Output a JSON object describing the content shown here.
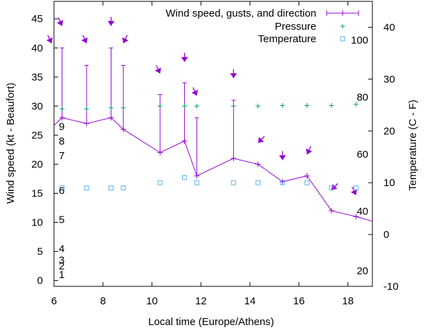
{
  "chart_data": {
    "type": "line",
    "title": "",
    "xlabel": "Local time (Europe/Athens)",
    "ylabel": "Wind speed (kt - Beaufort)",
    "y2label": "Temperature (C - F)",
    "xlim": [
      6,
      19
    ],
    "ylim": [
      -1,
      48
    ],
    "y2lim": [
      -10,
      45
    ],
    "x_ticks": [
      6,
      8,
      10,
      12,
      14,
      16,
      18
    ],
    "y_ticks": [
      0,
      5,
      10,
      15,
      20,
      25,
      30,
      35,
      40,
      45
    ],
    "y2_ticks": [
      -10,
      0,
      10,
      20,
      30,
      40
    ],
    "beaufort_labels": [
      {
        "y": 1,
        "text": "1"
      },
      {
        "y": 2.5,
        "text": "2"
      },
      {
        "y": 3.5,
        "text": "3"
      },
      {
        "y": 5.5,
        "text": "4"
      },
      {
        "y": 10.5,
        "text": "5"
      },
      {
        "y": 15.5,
        "text": "6"
      },
      {
        "y": 21.5,
        "text": "7"
      },
      {
        "y": 24,
        "text": "8"
      },
      {
        "y": 26.5,
        "text": "9"
      }
    ],
    "fahrenheit_labels": [
      {
        "y2": -7,
        "text": "20"
      },
      {
        "y2": 4.5,
        "text": "40"
      },
      {
        "y2": 15.5,
        "text": "60"
      },
      {
        "y2": 26.5,
        "text": "80"
      },
      {
        "y2": 37.5,
        "text": "100"
      }
    ],
    "legend_position": "top-right",
    "series": [
      {
        "name": "Wind speed, gusts, and direction",
        "color": "#9400d3",
        "x": [
          6.0,
          6.33,
          7.33,
          8.33,
          8.83,
          10.33,
          11.33,
          11.83,
          13.33,
          14.33,
          15.33,
          16.33,
          17.33,
          18.33,
          19.0
        ],
        "y": [
          26.7,
          28,
          27,
          28,
          26,
          22,
          24,
          18,
          21,
          20,
          17,
          18,
          12,
          11,
          10.2
        ],
        "gusts": [
          null,
          40,
          37,
          40,
          37,
          32,
          34,
          28,
          31,
          null,
          null,
          null,
          null,
          null,
          null
        ],
        "direction_arrows": [
          {
            "x": 5.9,
            "y": 40.8,
            "dir": "SE"
          },
          {
            "x": 6.33,
            "y": 43.8,
            "dir": "SE"
          },
          {
            "x": 7.33,
            "y": 40.8,
            "dir": "SE"
          },
          {
            "x": 8.33,
            "y": 43.8,
            "dir": "S"
          },
          {
            "x": 8.83,
            "y": 40.8,
            "dir": "SSW"
          },
          {
            "x": 10.33,
            "y": 35.6,
            "dir": "SE"
          },
          {
            "x": 11.33,
            "y": 37.6,
            "dir": "S"
          },
          {
            "x": 11.83,
            "y": 31.8,
            "dir": "SE"
          },
          {
            "x": 13.33,
            "y": 34.8,
            "dir": "S"
          },
          {
            "x": 14.33,
            "y": 23.7,
            "dir": "SW"
          },
          {
            "x": 15.33,
            "y": 20.7,
            "dir": "S"
          },
          {
            "x": 16.33,
            "y": 21.7,
            "dir": "SSW"
          },
          {
            "x": 17.33,
            "y": 15.6,
            "dir": "SW"
          },
          {
            "x": 18.33,
            "y": 14.7,
            "dir": "SE"
          }
        ]
      },
      {
        "name": "Pressure",
        "color": "#009e73",
        "marker": "plus",
        "x": [
          6.33,
          7.33,
          8.33,
          8.83,
          10.33,
          11.33,
          11.83,
          13.33,
          14.33,
          15.33,
          16.33,
          17.33,
          18.33
        ],
        "y": [
          29.5,
          29.5,
          29.7,
          29.7,
          30,
          30,
          30,
          30,
          30,
          30.1,
          30.1,
          30.1,
          30.3
        ]
      },
      {
        "name": "Temperature",
        "color": "#56b4e9",
        "marker": "open-square",
        "axis": "y2",
        "x": [
          6.33,
          7.33,
          8.33,
          8.83,
          10.33,
          11.33,
          11.83,
          13.33,
          14.33,
          15.33,
          16.33,
          17.33,
          18.33
        ],
        "y": [
          9,
          9,
          9,
          9,
          10,
          11,
          10,
          10,
          10,
          10,
          10,
          9,
          9
        ]
      }
    ]
  }
}
